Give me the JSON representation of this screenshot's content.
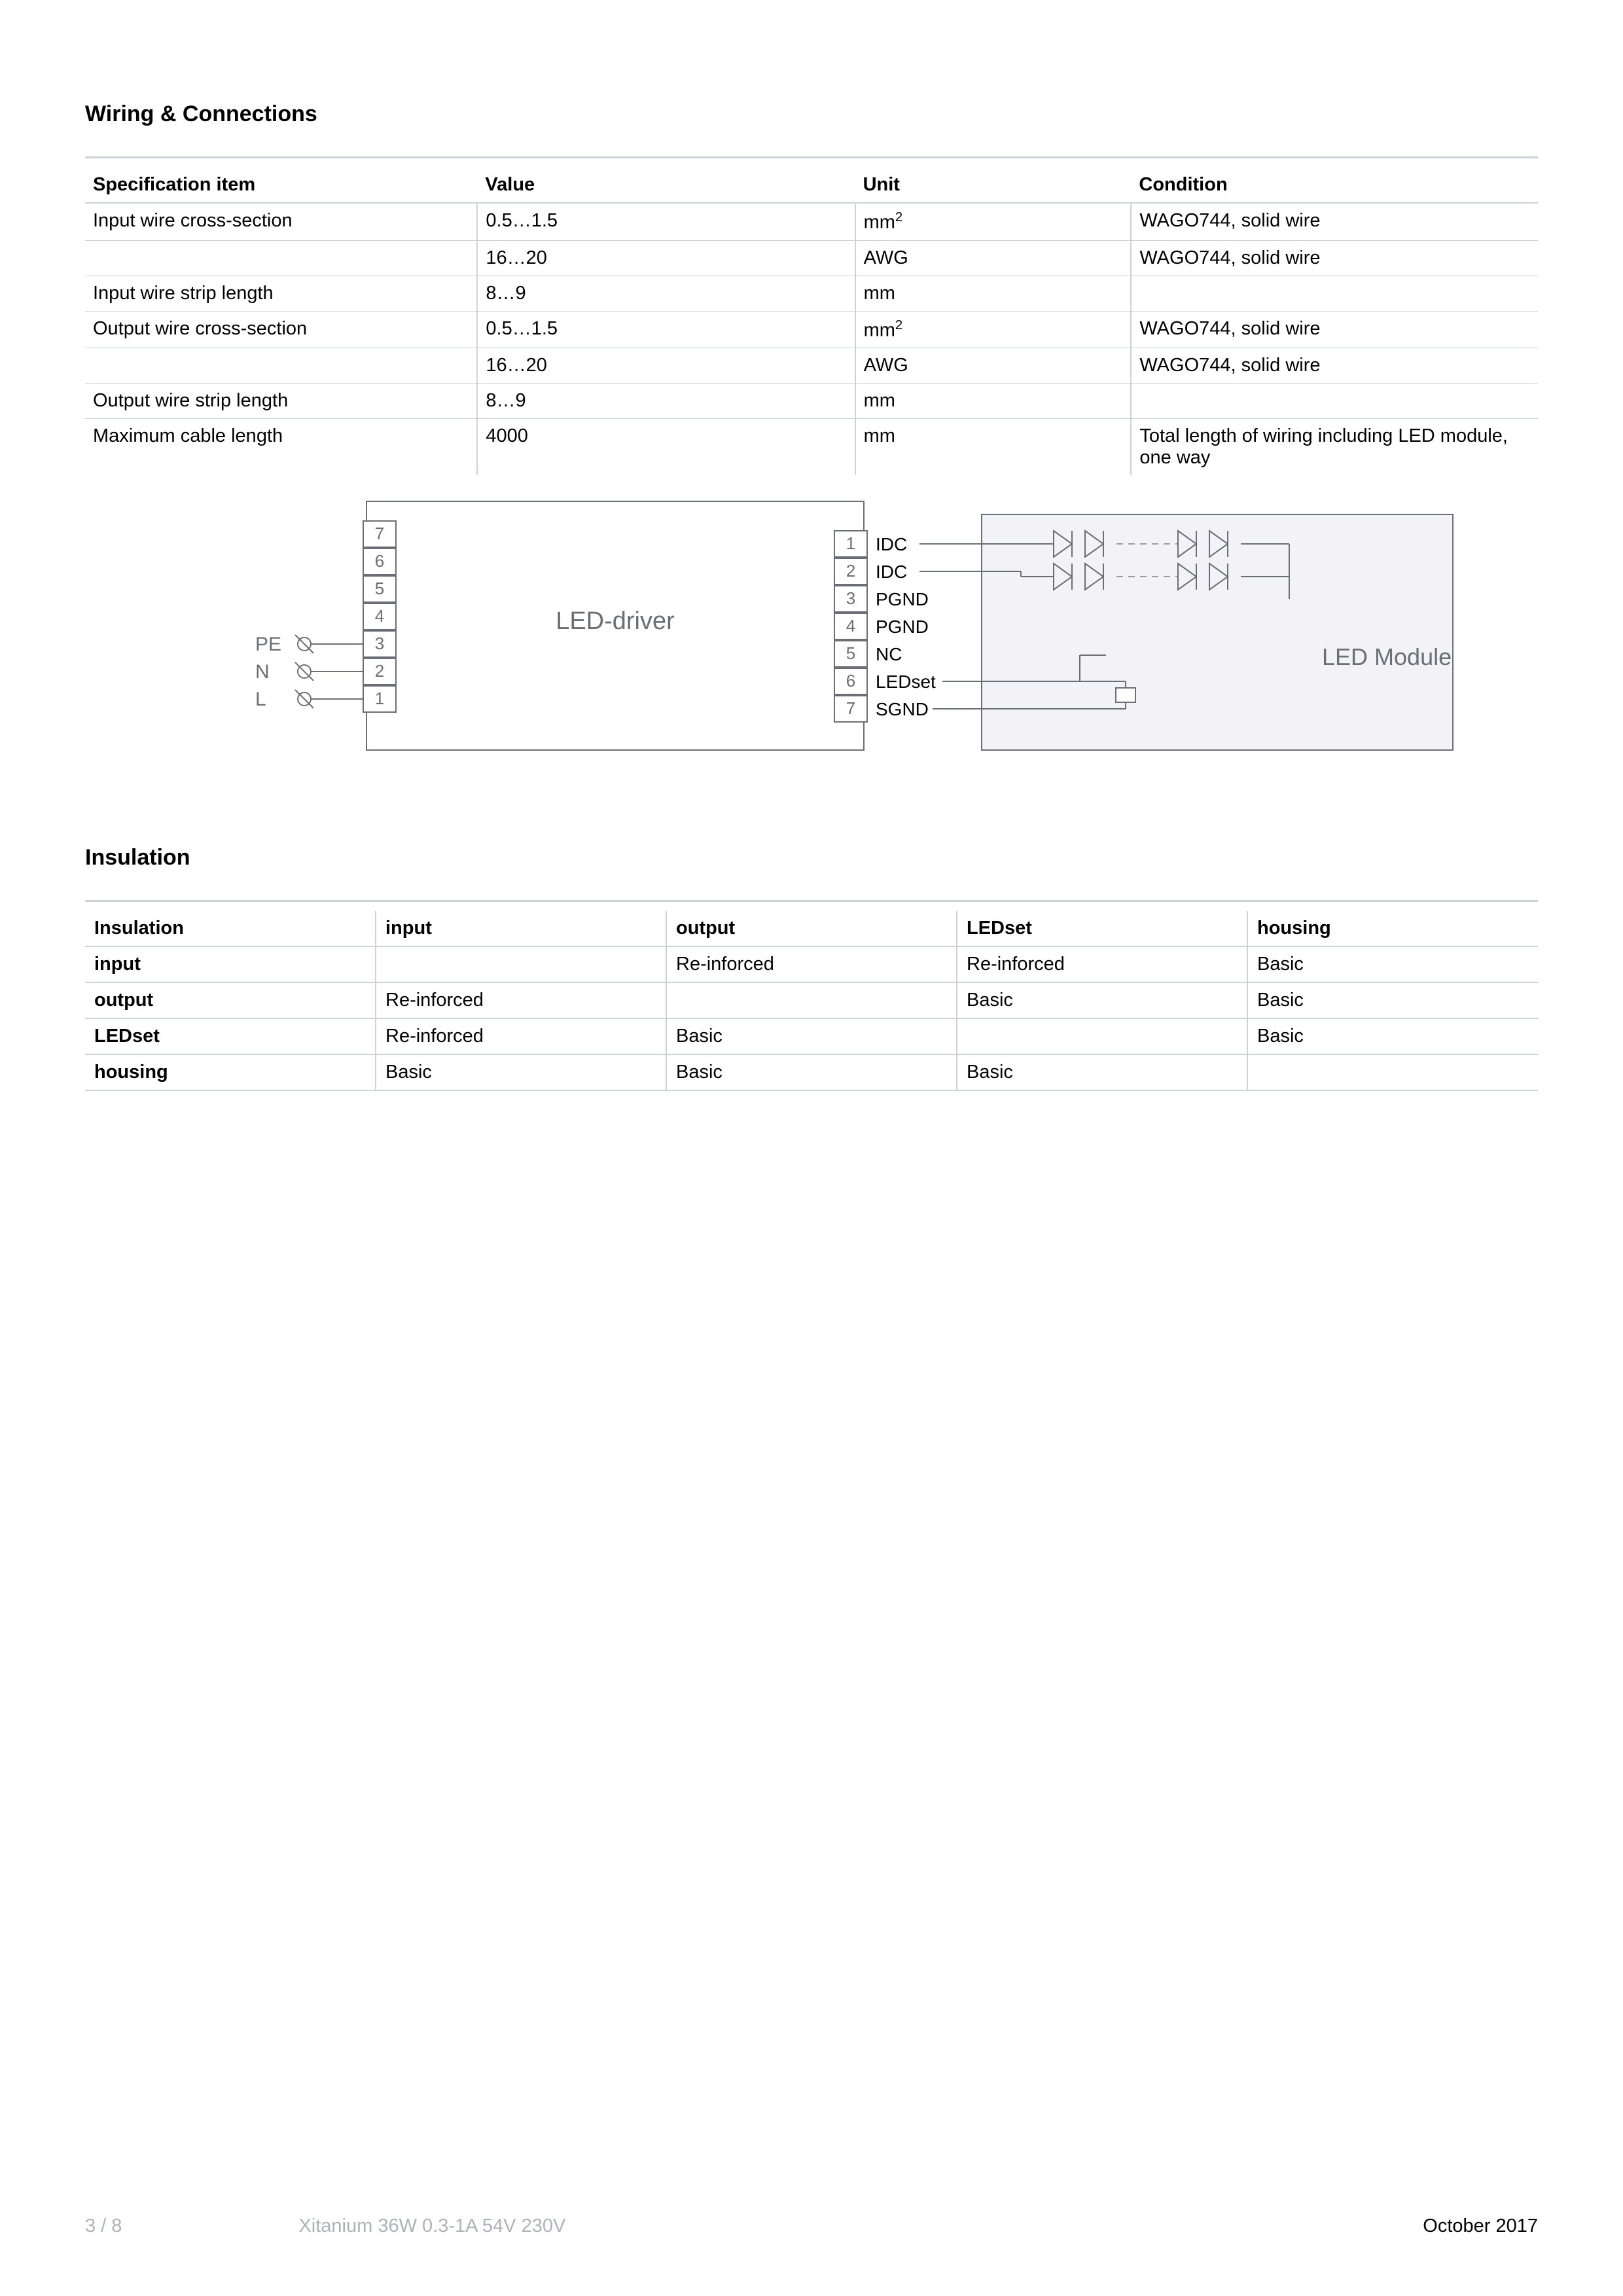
{
  "section1": {
    "title": "Wiring & Connections",
    "headers": [
      "Specification item",
      "Value",
      "Unit",
      "Condition"
    ],
    "rows": [
      [
        "Input wire cross-section",
        "0.5…1.5",
        "mm²",
        "WAGO744, solid wire"
      ],
      [
        "",
        "16…20",
        "AWG",
        "WAGO744, solid wire"
      ],
      [
        "Input wire strip length",
        "8…9",
        "mm",
        ""
      ],
      [
        "Output wire cross-section",
        "0.5…1.5",
        "mm²",
        "WAGO744, solid wire"
      ],
      [
        "",
        "16…20",
        "AWG",
        "WAGO744, solid wire"
      ],
      [
        "Output wire strip length",
        "8…9",
        "mm",
        ""
      ],
      [
        "Maximum cable length",
        "4000",
        "mm",
        "Total length of wiring including LED module, one way"
      ]
    ],
    "unit_mm2": "mm²"
  },
  "diagram": {
    "left_labels": {
      "pe": "PE",
      "n": "N",
      "l": "L"
    },
    "left_terminals": [
      "7",
      "6",
      "5",
      "4",
      "3",
      "2",
      "1"
    ],
    "driver_label": "LED-driver",
    "right_terminals": [
      "1",
      "2",
      "3",
      "4",
      "5",
      "6",
      "7"
    ],
    "right_signals": [
      "IDC",
      "IDC",
      "PGND",
      "PGND",
      "NC",
      "LEDset",
      "SGND"
    ],
    "module_label": "LED Module",
    "colors": {
      "stroke": "#6b6f75",
      "text": "#6b6f75",
      "fill_box": "#f2f2f7",
      "fill_none": "#ffffff",
      "dash": "#9a9ea3"
    }
  },
  "section2": {
    "title": "Insulation",
    "headers": [
      "Insulation",
      "input",
      "output",
      "LEDset",
      "housing"
    ],
    "rows": [
      [
        "input",
        "",
        "Re-inforced",
        "Re-inforced",
        "Basic"
      ],
      [
        "output",
        "Re-inforced",
        "",
        "Basic",
        "Basic"
      ],
      [
        "LEDset",
        "Re-inforced",
        "Basic",
        "",
        "Basic"
      ],
      [
        "housing",
        "Basic",
        "Basic",
        "Basic",
        ""
      ]
    ]
  },
  "footer": {
    "page": "3 / 8",
    "product": "Xitanium 36W 0.3-1A 54V 230V",
    "date": "October 2017"
  }
}
